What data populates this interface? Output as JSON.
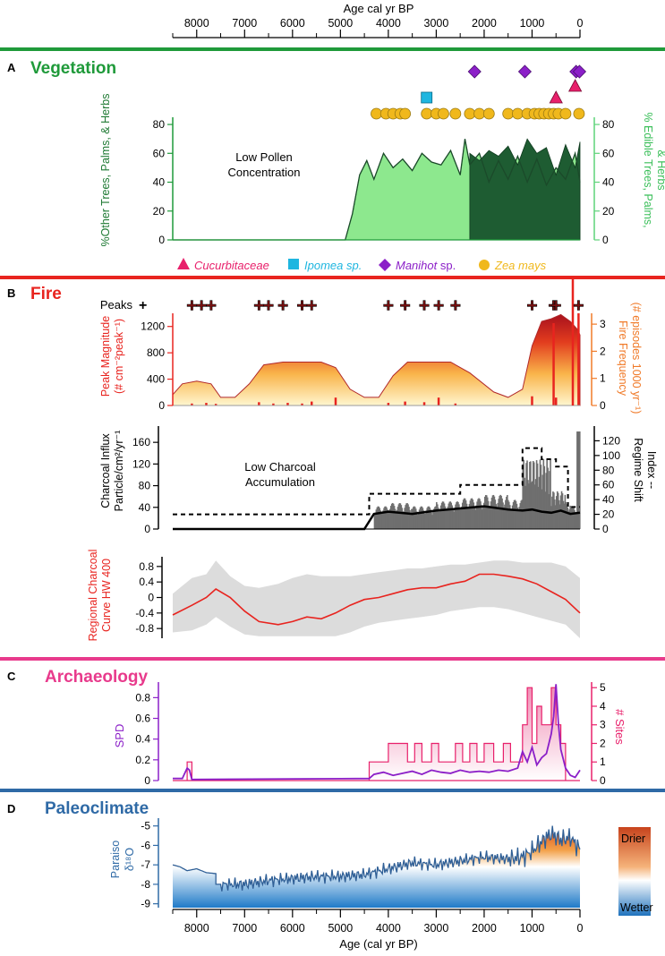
{
  "chart_data": {
    "type": "multi-panel",
    "x_axis": {
      "title": "Age cal yr BP",
      "bottom_title": "Age (cal yr BP)",
      "ticks": [
        "8000",
        "7000",
        "6000",
        "5000",
        "4000",
        "3000",
        "2000",
        "1000",
        "0"
      ],
      "range": [
        8500,
        0
      ]
    },
    "panels": [
      {
        "id": "A",
        "title": "Vegetation",
        "color": "#1f9a3a",
        "left_axis": {
          "label": "%Other Trees, Palms, & Herbs",
          "ticks": [
            "0",
            "20",
            "40",
            "60",
            "80"
          ],
          "range": [
            0,
            85
          ]
        },
        "right_axis": {
          "label_line1": "% Edible Trees, Palms,",
          "label_line2": "& Herbs",
          "ticks": [
            "0",
            "20",
            "40",
            "60",
            "80"
          ]
        },
        "annotation": {
          "line1": "Low Pollen",
          "line2": "Concentration"
        },
        "legend": [
          {
            "label": "Cucurbitaceae",
            "symbol": "triangle",
            "color": "#e8206b"
          },
          {
            "label": "Ipomea sp.",
            "symbol": "square",
            "color": "#1fb6e0"
          },
          {
            "label": "Manihot",
            "suffix": " sp.",
            "symbol": "diamond",
            "color": "#8b1fc8"
          },
          {
            "label": "Zea mays",
            "symbol": "circle",
            "color": "#f0b81c"
          }
        ],
        "macrofossils": {
          "cucurbitaceae": [
            500,
            100
          ],
          "ipomea": [
            3200
          ],
          "manihot": [
            2200,
            1150,
            80,
            10
          ],
          "zea_mays": [
            4250,
            4050,
            3900,
            3750,
            3650,
            3200,
            3000,
            2850,
            2600,
            2300,
            2100,
            1900,
            1500,
            1300,
            1100,
            950,
            850,
            750,
            650,
            550,
            450,
            300,
            20
          ]
        },
        "other_series": {
          "x": [
            8500,
            4900,
            4750,
            4600,
            4450,
            4300,
            4100,
            3900,
            3700,
            3500,
            3300,
            3100,
            2900,
            2700,
            2500,
            2400,
            2300,
            2100,
            1900,
            1700,
            1500,
            1300,
            1100,
            900,
            700,
            500,
            300,
            100,
            0
          ],
          "y": [
            0,
            0,
            18,
            45,
            55,
            42,
            60,
            50,
            56,
            48,
            60,
            54,
            52,
            62,
            45,
            70,
            52,
            60,
            40,
            55,
            42,
            58,
            40,
            56,
            38,
            50,
            42,
            60,
            40
          ]
        },
        "edible_series": {
          "x": [
            2300,
            2100,
            1900,
            1700,
            1500,
            1300,
            1100,
            900,
            700,
            500,
            300,
            100,
            0
          ],
          "y": [
            60,
            55,
            62,
            58,
            65,
            52,
            70,
            60,
            64,
            45,
            66,
            50,
            68
          ]
        }
      },
      {
        "id": "B",
        "title": "Fire",
        "color": "#e8241f",
        "peaks_label": "Peaks",
        "peaks": [
          8100,
          7900,
          7700,
          6700,
          6500,
          6200,
          5800,
          5600,
          4000,
          3650,
          3250,
          2950,
          2600,
          1000,
          550,
          500,
          30
        ],
        "peak_magnitude": {
          "label_line1": "Peak Magnitude",
          "label_line2": "(# cm⁻²peak⁻¹)",
          "ticks": [
            "0",
            "400",
            "800",
            "1200"
          ],
          "range": [
            0,
            1400
          ]
        },
        "fire_frequency": {
          "label_line1": "Fire Frequency",
          "label_line2": "(# episodes 1000 yr⁻¹)",
          "ticks": [
            "0",
            "1",
            "2",
            "3"
          ],
          "range": [
            0,
            3.4
          ],
          "x": [
            8500,
            8300,
            8000,
            7700,
            7500,
            7200,
            6900,
            6600,
            6200,
            5600,
            5400,
            5100,
            4800,
            4500,
            4200,
            3900,
            3600,
            3000,
            2700,
            2300,
            1800,
            1500,
            1200,
            1000,
            800,
            600,
            400,
            200,
            50,
            0
          ],
          "y": [
            0.4,
            0.8,
            0.9,
            0.8,
            0.3,
            0.3,
            0.8,
            1.5,
            1.6,
            1.6,
            1.6,
            1.4,
            0.6,
            0.3,
            0.3,
            1.1,
            1.6,
            1.6,
            1.6,
            1.2,
            0.5,
            0.3,
            0.6,
            2.2,
            3.1,
            3.2,
            3.35,
            3.1,
            2.8,
            2.6
          ]
        },
        "magnitude_spikes": {
          "x": [
            8100,
            7800,
            7600,
            6700,
            6400,
            6100,
            5800,
            5600,
            5100,
            4000,
            3650,
            3250,
            2950,
            2600,
            1000,
            550,
            500,
            30
          ],
          "y": [
            30,
            40,
            25,
            50,
            30,
            40,
            30,
            60,
            120,
            40,
            60,
            50,
            120,
            30,
            140,
            1250,
            120,
            1400
          ]
        },
        "charcoal_influx": {
          "label_line1": "Charcoal Influx",
          "label_line2": "Particle/cm²/yr⁻¹",
          "ticks": [
            "0",
            "40",
            "80",
            "120",
            "160"
          ],
          "range": [
            0,
            190
          ],
          "baseline_x": [
            8500,
            4500,
            4300,
            4000,
            3500,
            3000,
            2500,
            2000,
            1500,
            1200,
            1000,
            800,
            600,
            400,
            200,
            0
          ],
          "baseline_y": [
            0,
            0,
            28,
            32,
            28,
            34,
            38,
            42,
            36,
            34,
            36,
            32,
            30,
            34,
            28,
            30
          ]
        },
        "regime_shift": {
          "label_line1": "Regime Shift",
          "label_line2": "Index --",
          "ticks": [
            "0",
            "20",
            "40",
            "60",
            "80",
            "100",
            "120"
          ],
          "x": [
            8500,
            4400,
            4400,
            2500,
            2500,
            1200,
            1200,
            800,
            800,
            500,
            500,
            250,
            250,
            0
          ],
          "y": [
            20,
            20,
            48,
            48,
            60,
            60,
            110,
            110,
            95,
            95,
            85,
            85,
            30,
            30
          ]
        },
        "charcoal_annotation": {
          "line1": "Low Charcoal",
          "line2": "Accumulation"
        },
        "regional_curve": {
          "label_line1": "Regional Charcoal",
          "label_line2": "Curve HW 400",
          "ticks": [
            "-0.8",
            "-0.4",
            "0",
            "0.4",
            "0.8"
          ],
          "range": [
            -1.05,
            1.05
          ],
          "x": [
            8500,
            8100,
            7800,
            7600,
            7300,
            7000,
            6700,
            6300,
            6000,
            5700,
            5400,
            5100,
            4800,
            4500,
            4200,
            3900,
            3600,
            3300,
            3000,
            2700,
            2400,
            2100,
            1800,
            1500,
            1200,
            900,
            600,
            300,
            0
          ],
          "y": [
            -0.45,
            -0.2,
            0.0,
            0.22,
            0.0,
            -0.35,
            -0.62,
            -0.7,
            -0.62,
            -0.5,
            -0.55,
            -0.4,
            -0.2,
            -0.05,
            0.0,
            0.1,
            0.2,
            0.25,
            0.25,
            0.35,
            0.42,
            0.6,
            0.6,
            0.55,
            0.48,
            0.35,
            0.15,
            -0.05,
            -0.4
          ],
          "band_upper": [
            0.1,
            0.5,
            0.6,
            0.95,
            0.55,
            0.3,
            0.25,
            0.35,
            0.5,
            0.6,
            0.55,
            0.55,
            0.55,
            0.6,
            0.65,
            0.7,
            0.75,
            0.75,
            0.8,
            0.85,
            0.85,
            0.9,
            0.95,
            0.95,
            0.9,
            0.9,
            0.9,
            0.8,
            0.5
          ],
          "band_lower": [
            -0.9,
            -0.85,
            -0.7,
            -0.5,
            -0.75,
            -0.95,
            -1.0,
            -1.0,
            -1.0,
            -1.0,
            -1.0,
            -1.0,
            -0.9,
            -0.75,
            -0.65,
            -0.6,
            -0.55,
            -0.5,
            -0.45,
            -0.35,
            -0.3,
            -0.25,
            -0.25,
            -0.3,
            -0.4,
            -0.5,
            -0.6,
            -0.7,
            -1.05
          ]
        }
      },
      {
        "id": "C",
        "title": "Archaeology",
        "color": "#e83a8c",
        "left_axis": {
          "label": "SPD",
          "ticks": [
            "0",
            "0.2",
            "0.4",
            "0.6",
            "0.8"
          ],
          "range": [
            0,
            0.95
          ],
          "color": "#8b1fc8"
        },
        "right_axis": {
          "label": "# Sites",
          "ticks": [
            "0",
            "1",
            "2",
            "3",
            "4",
            "5"
          ],
          "range": [
            0,
            5.3
          ],
          "color": "#e8206b"
        },
        "sites_steps": {
          "x": [
            8500,
            8200,
            8200,
            8100,
            8100,
            4400,
            4400,
            4000,
            4000,
            3600,
            3600,
            3450,
            3450,
            3300,
            3300,
            3100,
            3100,
            2950,
            2950,
            2600,
            2600,
            2450,
            2450,
            2300,
            2300,
            2150,
            2150,
            2000,
            2000,
            1800,
            1800,
            1600,
            1600,
            1450,
            1450,
            1200,
            1200,
            1100,
            1100,
            1000,
            1000,
            900,
            900,
            800,
            800,
            600,
            600,
            500,
            500,
            400,
            400,
            300,
            300,
            50,
            50,
            0
          ],
          "y": [
            0,
            0,
            1,
            1,
            0,
            0,
            1,
            1,
            2,
            2,
            1,
            1,
            2,
            2,
            1,
            1,
            2,
            2,
            1,
            1,
            2,
            2,
            1,
            1,
            2,
            2,
            1,
            1,
            2,
            2,
            1,
            1,
            2,
            2,
            1,
            1,
            3,
            3,
            5,
            5,
            2,
            2,
            4,
            4,
            3,
            3,
            5,
            5,
            3,
            3,
            2,
            2,
            0,
            0,
            0,
            0
          ]
        },
        "spd": {
          "x": [
            8500,
            8300,
            8200,
            8150,
            8100,
            4400,
            4300,
            4100,
            3900,
            3700,
            3500,
            3300,
            3100,
            2900,
            2700,
            2500,
            2300,
            2100,
            1900,
            1700,
            1500,
            1300,
            1200,
            1100,
            1000,
            900,
            800,
            700,
            600,
            550,
            500,
            450,
            400,
            300,
            200,
            100,
            0
          ],
          "y": [
            0.02,
            0.02,
            0.12,
            0.1,
            0.01,
            0.02,
            0.06,
            0.08,
            0.05,
            0.07,
            0.09,
            0.06,
            0.1,
            0.08,
            0.07,
            0.1,
            0.08,
            0.09,
            0.08,
            0.1,
            0.09,
            0.12,
            0.28,
            0.18,
            0.32,
            0.15,
            0.22,
            0.26,
            0.45,
            0.62,
            0.93,
            0.55,
            0.3,
            0.12,
            0.05,
            0.03,
            0.1
          ]
        }
      },
      {
        "id": "D",
        "title": "Paleoclimate",
        "color": "#2f6aa6",
        "left_axis": {
          "label_line1": "Paraiso",
          "label_line2": "δ¹⁸O",
          "ticks": [
            "-9",
            "-8",
            "-7",
            "-6",
            "-5"
          ],
          "range": [
            -9.2,
            -4.6
          ]
        },
        "colorbar": {
          "top": "Drier",
          "bottom": "Wetter",
          "colors": [
            "#d84a1a",
            "#f3a24b",
            "#ffffff",
            "#1f7ac8"
          ]
        },
        "series": {
          "x": [
            8500,
            8350,
            8200,
            8000,
            7800,
            7600,
            7600,
            7000,
            6500,
            6000,
            5500,
            5000,
            4500,
            4000,
            3500,
            3000,
            2500,
            2000,
            1500,
            1200,
            1000,
            800,
            600,
            400,
            200,
            0
          ],
          "y": [
            -7.0,
            -7.1,
            -7.3,
            -7.2,
            -7.4,
            -7.45,
            -8.0,
            -8.0,
            -7.8,
            -7.7,
            -7.6,
            -7.6,
            -7.5,
            -7.2,
            -6.9,
            -7.0,
            -6.8,
            -6.6,
            -6.7,
            -6.6,
            -6.3,
            -5.8,
            -5.4,
            -5.7,
            -5.6,
            -6.2
          ]
        }
      }
    ]
  }
}
